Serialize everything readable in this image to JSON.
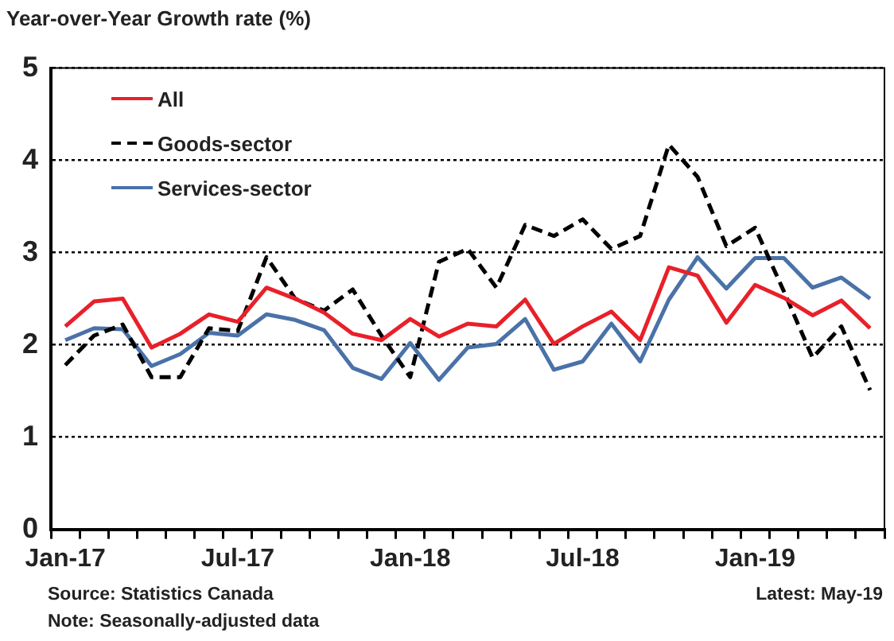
{
  "chart_data": {
    "type": "line",
    "title": "Year-over-Year Growth rate (%)",
    "categories": [
      "Jan-17",
      null,
      null,
      null,
      null,
      null,
      "Jul-17",
      null,
      null,
      null,
      null,
      null,
      "Jan-18",
      null,
      null,
      null,
      null,
      null,
      "Jul-18",
      null,
      null,
      null,
      null,
      null,
      "Jan-19",
      null,
      null,
      null,
      null
    ],
    "series": [
      {
        "name": "All",
        "color": "#e8202a",
        "line_style": "solid",
        "values": [
          2.2,
          2.47,
          2.5,
          1.97,
          2.12,
          2.33,
          2.25,
          2.62,
          2.5,
          2.35,
          2.12,
          2.05,
          2.28,
          2.09,
          2.23,
          2.2,
          2.49,
          2.01,
          2.2,
          2.36,
          2.05,
          2.84,
          2.75,
          2.24,
          2.65,
          2.51,
          2.32,
          2.48,
          2.18
        ]
      },
      {
        "name": "Goods-sector",
        "color": "#000000",
        "line_style": "dashed",
        "values": [
          1.78,
          2.1,
          2.22,
          1.65,
          1.65,
          2.18,
          2.15,
          2.95,
          2.5,
          2.37,
          2.6,
          2.1,
          1.65,
          2.9,
          3.04,
          2.62,
          3.3,
          3.18,
          3.36,
          3.04,
          3.18,
          4.17,
          3.82,
          3.07,
          3.27,
          2.58,
          1.86,
          2.2,
          1.51
        ]
      },
      {
        "name": "Services-sector",
        "color": "#4a72a8",
        "line_style": "solid",
        "values": [
          2.05,
          2.18,
          2.17,
          1.77,
          1.9,
          2.13,
          2.1,
          2.33,
          2.27,
          2.16,
          1.75,
          1.63,
          2.02,
          1.62,
          1.97,
          2.01,
          2.28,
          1.73,
          1.82,
          2.23,
          1.82,
          2.49,
          2.95,
          2.61,
          2.94,
          2.94,
          2.62,
          2.73,
          2.5
        ]
      }
    ],
    "ylim": [
      0,
      5
    ],
    "yticks": [
      0,
      1,
      2,
      3,
      4,
      5
    ],
    "grid": "y",
    "legend": "top left",
    "marker": "none",
    "annotations": [
      "Source: Statistics Canada",
      "Latest: May-19",
      "Note: Seasonally-adjusted data"
    ]
  }
}
